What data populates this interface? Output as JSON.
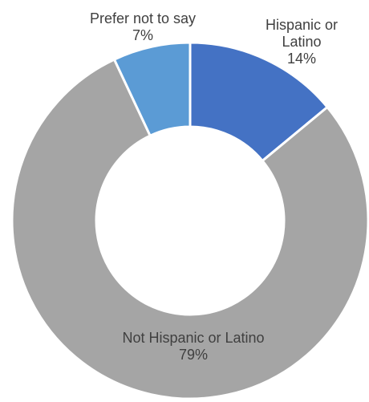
{
  "chart_data": {
    "type": "pie",
    "subtype": "donut",
    "title": "",
    "slices": [
      {
        "label_lines": [
          "Hispanic or",
          "Latino"
        ],
        "percent_label": "14%",
        "value": 14,
        "color": "#4472C4"
      },
      {
        "label_lines": [
          "Not Hispanic or Latino"
        ],
        "percent_label": "79%",
        "value": 79,
        "color": "#A5A5A5"
      },
      {
        "label_lines": [
          "Prefer not to say"
        ],
        "percent_label": "7%",
        "value": 7,
        "color": "#5B9BD5"
      }
    ],
    "legend": "none",
    "slice_border_color": "#ffffff"
  }
}
